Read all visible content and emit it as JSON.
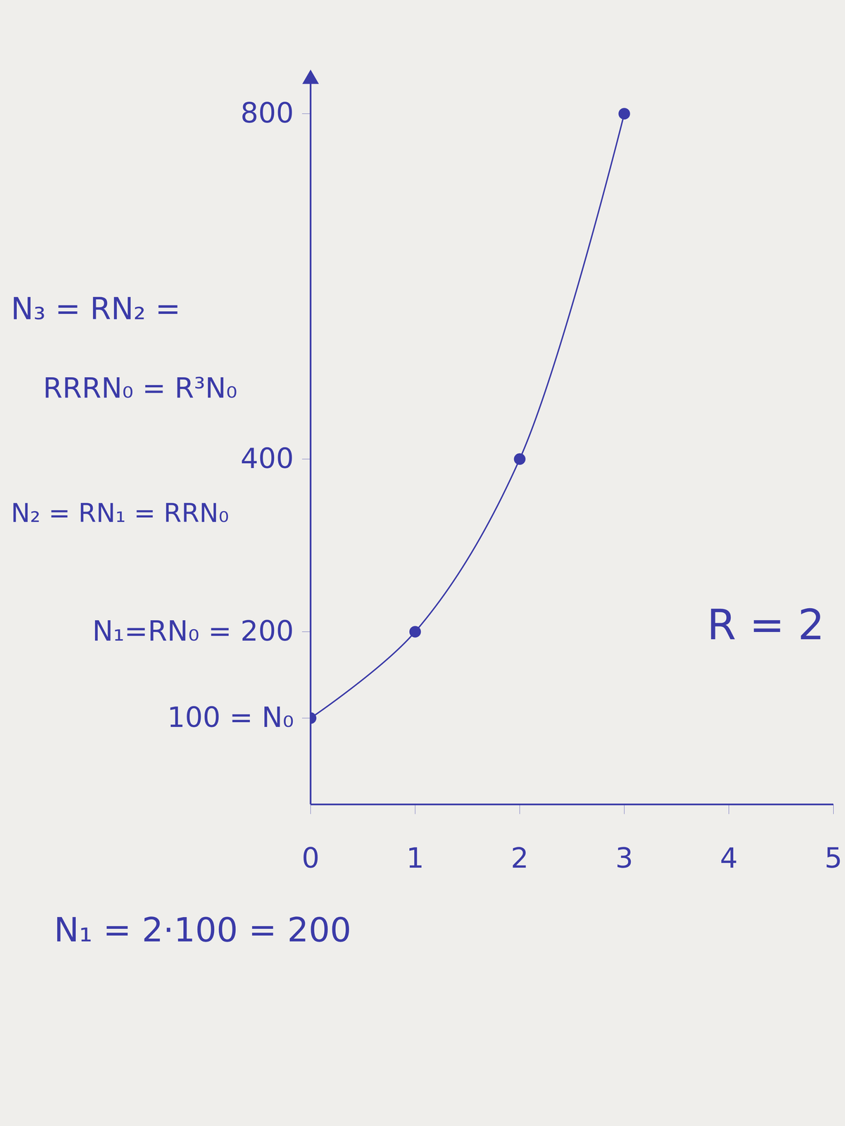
{
  "chart_data": {
    "type": "line",
    "x": [
      0,
      1,
      2,
      3
    ],
    "values": [
      100,
      200,
      400,
      800
    ],
    "color": "#3b3ba8",
    "marker": "circle",
    "line_style": "solid",
    "grid": false,
    "xlim": [
      0,
      5
    ],
    "xticks": [
      0,
      1,
      2,
      3,
      4,
      5
    ],
    "ylim": [
      0,
      840
    ],
    "yticks": [
      {
        "value": 100,
        "label": "100 = N₀"
      },
      {
        "value": 200,
        "label": "N₁=RN₀ = 200"
      },
      400,
      800
    ],
    "annotations": [
      "N₃ = RN₂ =",
      "RRRN₀ = R³N₀",
      "N₂ = RN₁ = RRN₀",
      "R = 2",
      "N₁ = 2·100 = 200"
    ]
  }
}
